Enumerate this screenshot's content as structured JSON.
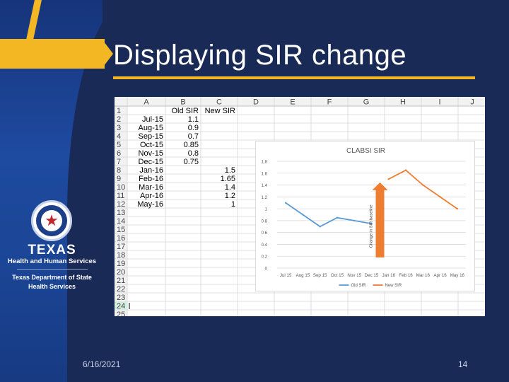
{
  "slide": {
    "title": "Displaying SIR change",
    "date": "6/16/2021",
    "page_number": "14"
  },
  "brand": {
    "texas": "TEXAS",
    "hhs": "Health and Human Services",
    "dshs_line1": "Texas Department of State",
    "dshs_line2": "Health Services",
    "seal_icon": "texas-star-seal-icon"
  },
  "colors": {
    "background": "#1a2a57",
    "accent_gold": "#f3b724",
    "old_sir": "#5b9bd5",
    "new_sir": "#ed7d31",
    "arrow": "#ed7d31"
  },
  "spreadsheet": {
    "columns": [
      "A",
      "B",
      "C",
      "D",
      "E",
      "F",
      "G",
      "H",
      "I",
      "J"
    ],
    "row_numbers": [
      "1",
      "2",
      "3",
      "4",
      "5",
      "6",
      "7",
      "8",
      "9",
      "10",
      "11",
      "12",
      "13",
      "14",
      "15",
      "16",
      "17",
      "18",
      "19",
      "20",
      "21",
      "22",
      "23",
      "24",
      "25"
    ],
    "header_row": {
      "A": "",
      "B": "Old SIR",
      "C": "New SIR"
    },
    "rows": [
      {
        "A": "Jul-15",
        "B": "1.1",
        "C": ""
      },
      {
        "A": "Aug-15",
        "B": "0.9",
        "C": ""
      },
      {
        "A": "Sep-15",
        "B": "0.7",
        "C": ""
      },
      {
        "A": "Oct-15",
        "B": "0.85",
        "C": ""
      },
      {
        "A": "Nov-15",
        "B": "0.8",
        "C": ""
      },
      {
        "A": "Dec-15",
        "B": "0.75",
        "C": ""
      },
      {
        "A": "Jan-16",
        "B": "",
        "C": "1.5"
      },
      {
        "A": "Feb-16",
        "B": "",
        "C": "1.65"
      },
      {
        "A": "Mar-16",
        "B": "",
        "C": "1.4"
      },
      {
        "A": "Apr-16",
        "B": "",
        "C": "1.2"
      },
      {
        "A": "May-16",
        "B": "",
        "C": "1"
      }
    ],
    "selected_row": "24"
  },
  "chart_data": {
    "type": "line",
    "title": "CLABSI SIR",
    "x": [
      "Jul 15",
      "Aug 15",
      "Sep 15",
      "Oct 15",
      "Nov 15",
      "Dec 15",
      "Jan 16",
      "Feb 16",
      "Mar 16",
      "Apr 16",
      "May 16"
    ],
    "series": [
      {
        "name": "Old SIR",
        "values": [
          1.1,
          0.9,
          0.7,
          0.85,
          0.8,
          0.75,
          null,
          null,
          null,
          null,
          null
        ]
      },
      {
        "name": "New SIR",
        "values": [
          null,
          null,
          null,
          null,
          null,
          null,
          1.5,
          1.65,
          1.4,
          1.2,
          1
        ]
      }
    ],
    "y_ticks": [
      "0",
      "0.2",
      "0.4",
      "0.6",
      "0.8",
      "1",
      "1.2",
      "1.4",
      "1.6",
      "1.8"
    ],
    "ylim": [
      0,
      1.8
    ],
    "grid": true,
    "legend": "bottom",
    "annotation": "Change in SIR baseline",
    "annotation_at": "Dec 15"
  }
}
